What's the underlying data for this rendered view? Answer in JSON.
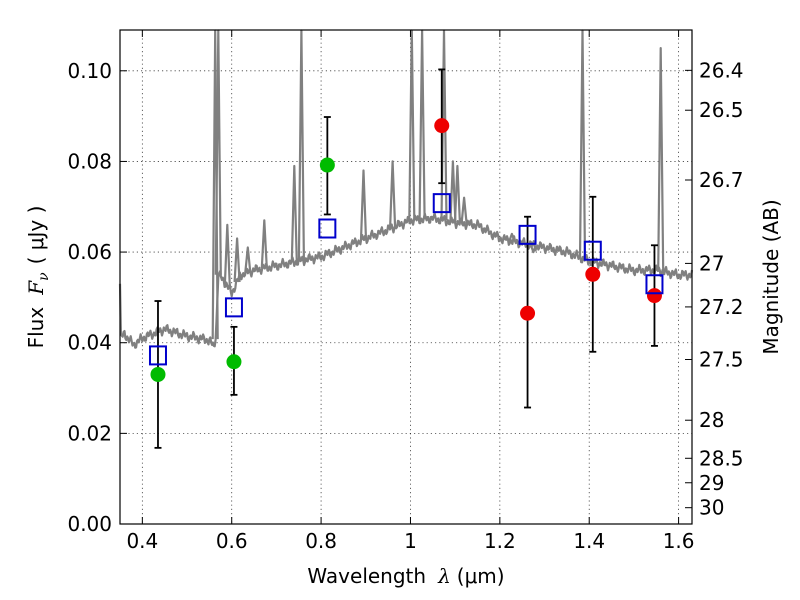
{
  "chart_data": {
    "type": "scatter",
    "title": "",
    "xlabel_prefix": "Wavelength",
    "xlabel_symbol": "λ",
    "xlabel_unit": "(μm)",
    "ylabel_prefix": "Flux",
    "ylabel_symbol": "F",
    "ylabel_subscript": "ν",
    "ylabel_unit": "( μJy )",
    "ylabel_right": "Magnitude (AB)",
    "xlim": [
      0.35,
      1.63
    ],
    "ylim": [
      0.0,
      0.109
    ],
    "grid": true,
    "x_ticks": [
      0.4,
      0.6,
      0.8,
      1.0,
      1.2,
      1.4,
      1.6
    ],
    "x_tick_labels": [
      "0.4",
      "0.6",
      "0.8",
      "1",
      "1.2",
      "1.4",
      "1.6"
    ],
    "y_ticks": [
      0.0,
      0.02,
      0.04,
      0.06,
      0.08,
      0.1
    ],
    "y_tick_labels": [
      "0.00",
      "0.02",
      "0.04",
      "0.06",
      "0.08",
      "0.10"
    ],
    "right_ticks": [
      {
        "label": "26.4",
        "flux": 0.1001
      },
      {
        "label": "26.5",
        "flux": 0.0913
      },
      {
        "label": "26.7",
        "flux": 0.0759
      },
      {
        "label": "27",
        "flux": 0.0575
      },
      {
        "label": "27.2",
        "flux": 0.0479
      },
      {
        "label": "27.5",
        "flux": 0.0363
      },
      {
        "label": "28",
        "flux": 0.0229
      },
      {
        "label": "28.5",
        "flux": 0.0145
      },
      {
        "label": "29",
        "flux": 0.0091
      },
      {
        "label": "30",
        "flux": 0.0036
      }
    ],
    "series": [
      {
        "kind": "spectrum",
        "color": "#808080",
        "baseline": [
          [
            0.35,
            0.053
          ],
          [
            0.352,
            0.041
          ],
          [
            0.36,
            0.042
          ],
          [
            0.38,
            0.0395
          ],
          [
            0.4,
            0.041
          ],
          [
            0.45,
            0.043
          ],
          [
            0.5,
            0.0415
          ],
          [
            0.55,
            0.0405
          ],
          [
            0.56,
            0.039
          ],
          [
            0.565,
            0.042
          ],
          [
            0.57,
            0.055
          ],
          [
            0.58,
            0.054
          ],
          [
            0.6,
            0.051
          ],
          [
            0.62,
            0.055
          ],
          [
            0.65,
            0.056
          ],
          [
            0.7,
            0.057
          ],
          [
            0.75,
            0.058
          ],
          [
            0.8,
            0.059
          ],
          [
            0.85,
            0.061
          ],
          [
            0.9,
            0.063
          ],
          [
            0.95,
            0.065
          ],
          [
            1.0,
            0.067
          ],
          [
            1.05,
            0.0675
          ],
          [
            1.1,
            0.0665
          ],
          [
            1.15,
            0.066
          ],
          [
            1.2,
            0.063
          ],
          [
            1.25,
            0.062
          ],
          [
            1.3,
            0.061
          ],
          [
            1.35,
            0.06
          ],
          [
            1.4,
            0.058
          ],
          [
            1.45,
            0.057
          ],
          [
            1.5,
            0.056
          ],
          [
            1.55,
            0.056
          ],
          [
            1.6,
            0.055
          ],
          [
            1.63,
            0.055
          ]
        ],
        "lines": [
          [
            0.563,
            0.109
          ],
          [
            0.57,
            0.109
          ],
          [
            0.59,
            0.066
          ],
          [
            0.612,
            0.063
          ],
          [
            0.636,
            0.061
          ],
          [
            0.673,
            0.067
          ],
          [
            0.74,
            0.079
          ],
          [
            0.756,
            0.109
          ],
          [
            0.895,
            0.078
          ],
          [
            0.96,
            0.08
          ],
          [
            1.003,
            0.109
          ],
          [
            1.026,
            0.109
          ],
          [
            1.075,
            0.109
          ],
          [
            1.095,
            0.08
          ],
          [
            1.105,
            0.079
          ],
          [
            1.12,
            0.072
          ],
          [
            1.227,
            0.064
          ],
          [
            1.275,
            0.06
          ],
          [
            1.385,
            0.109
          ],
          [
            1.56,
            0.105
          ]
        ]
      },
      {
        "kind": "model_points",
        "marker": "open-square",
        "color": "#0000cc",
        "points": [
          [
            0.435,
            0.0372
          ],
          [
            0.605,
            0.0478
          ],
          [
            0.814,
            0.0652
          ],
          [
            1.07,
            0.0708
          ],
          [
            1.262,
            0.0638
          ],
          [
            1.408,
            0.0603
          ],
          [
            1.546,
            0.0529
          ]
        ]
      },
      {
        "kind": "observed_green",
        "marker": "filled-circle",
        "color": "#00bb00",
        "points": [
          [
            0.435,
            0.033
          ],
          [
            0.605,
            0.0358
          ],
          [
            0.814,
            0.0792
          ]
        ]
      },
      {
        "kind": "observed_red",
        "marker": "filled-circle",
        "color": "#ee0000",
        "points": [
          [
            1.07,
            0.0879
          ],
          [
            1.262,
            0.0465
          ],
          [
            1.408,
            0.0551
          ],
          [
            1.546,
            0.0504
          ]
        ]
      },
      {
        "kind": "error_bars",
        "color": "#000000",
        "bars": [
          [
            0.435,
            0.0168,
            0.0492
          ],
          [
            0.605,
            0.0285,
            0.0435
          ],
          [
            0.814,
            0.0683,
            0.0898
          ],
          [
            1.07,
            0.0752,
            0.1003
          ],
          [
            1.262,
            0.0257,
            0.0678
          ],
          [
            1.408,
            0.038,
            0.0722
          ],
          [
            1.546,
            0.0393,
            0.0615
          ]
        ]
      }
    ]
  }
}
